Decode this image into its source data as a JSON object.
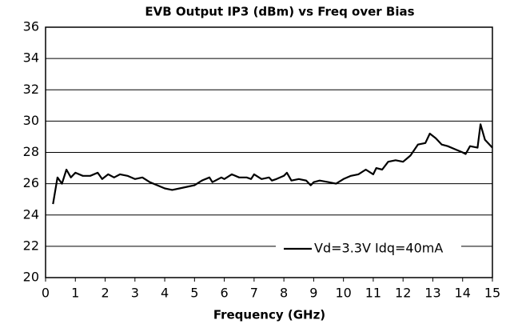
{
  "chart_data": {
    "type": "line",
    "title": "EVB Output IP3 (dBm) vs Freq over Bias",
    "xlabel": "Frequency (GHz)",
    "x": [
      0.25,
      0.4,
      0.55,
      0.7,
      0.85,
      1.0,
      1.25,
      1.5,
      1.75,
      1.9,
      2.1,
      2.3,
      2.5,
      2.75,
      3.0,
      3.25,
      3.5,
      3.75,
      4.0,
      4.25,
      4.5,
      4.75,
      5.0,
      5.25,
      5.5,
      5.6,
      5.9,
      6.0,
      6.25,
      6.5,
      6.75,
      6.9,
      7.0,
      7.25,
      7.5,
      7.6,
      7.75,
      8.0,
      8.1,
      8.25,
      8.5,
      8.75,
      8.9,
      9.0,
      9.2,
      9.5,
      9.75,
      10.0,
      10.25,
      10.5,
      10.75,
      11.0,
      11.1,
      11.3,
      11.5,
      11.75,
      12.0,
      12.25,
      12.5,
      12.75,
      12.9,
      13.1,
      13.3,
      13.5,
      13.75,
      14.0,
      14.1,
      14.25,
      14.5,
      14.6,
      14.75,
      15.0
    ],
    "series": [
      {
        "name": "Vd=3.3V Idq=40mA",
        "color": "#000000",
        "values": [
          24.7,
          26.4,
          26.0,
          26.9,
          26.4,
          26.7,
          26.5,
          26.5,
          26.7,
          26.3,
          26.6,
          26.4,
          26.6,
          26.5,
          26.3,
          26.4,
          26.1,
          25.9,
          25.7,
          25.6,
          25.7,
          25.8,
          25.9,
          26.2,
          26.4,
          26.1,
          26.4,
          26.3,
          26.6,
          26.4,
          26.4,
          26.3,
          26.6,
          26.3,
          26.4,
          26.2,
          26.3,
          26.5,
          26.7,
          26.2,
          26.3,
          26.2,
          25.9,
          26.1,
          26.2,
          26.1,
          26.0,
          26.3,
          26.5,
          26.6,
          26.9,
          26.6,
          27.0,
          26.9,
          27.4,
          27.5,
          27.4,
          27.8,
          28.5,
          28.6,
          29.2,
          28.9,
          28.5,
          28.4,
          28.2,
          28.0,
          27.9,
          28.4,
          28.3,
          29.8,
          28.8,
          28.3
        ]
      }
    ],
    "xlim": [
      0,
      15
    ],
    "xticks": [
      0,
      1,
      2,
      3,
      4,
      5,
      6,
      7,
      8,
      9,
      10,
      11,
      12,
      13,
      14,
      15
    ],
    "ylim": [
      20,
      36
    ],
    "yticks": [
      20,
      22,
      24,
      26,
      28,
      30,
      32,
      34,
      36
    ],
    "grid": true,
    "legend": "lower right"
  }
}
